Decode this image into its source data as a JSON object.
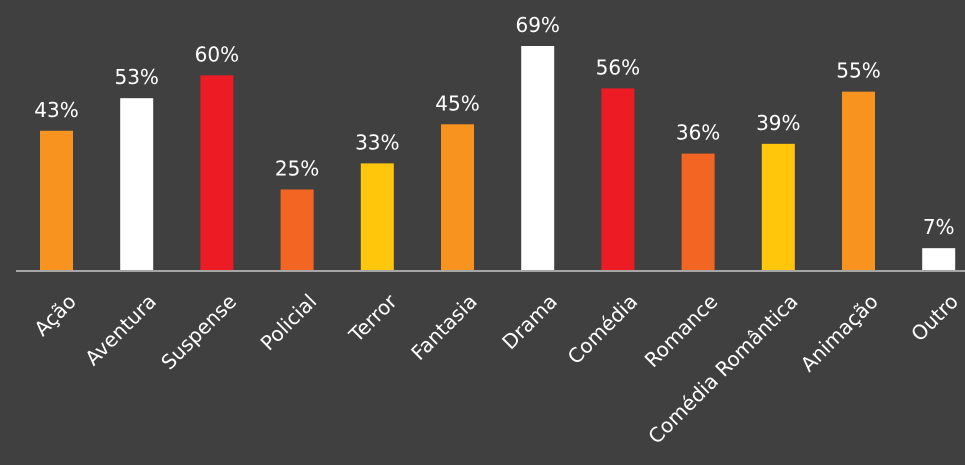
{
  "chart_data": {
    "type": "bar",
    "categories": [
      "Ação",
      "Aventura",
      "Suspense",
      "Policial",
      "Terror",
      "Fantasia",
      "Drama",
      "Comédia",
      "Romance",
      "Comédia Romântica",
      "Animação",
      "Outro"
    ],
    "values": [
      43,
      53,
      60,
      25,
      33,
      45,
      69,
      56,
      36,
      39,
      55,
      7
    ],
    "value_labels": [
      "43%",
      "53%",
      "60%",
      "25%",
      "33%",
      "45%",
      "69%",
      "56%",
      "36%",
      "39%",
      "55%",
      "7%"
    ],
    "bar_colors": [
      "#f7931e",
      "#ffffff",
      "#ed1c24",
      "#f26522",
      "#ffc60b",
      "#f7931e",
      "#ffffff",
      "#ed1c24",
      "#f26522",
      "#ffc60b",
      "#f7931e",
      "#ffffff"
    ],
    "ylim": [
      0,
      70
    ],
    "grid": false,
    "legend": "none",
    "colors": {
      "background": "#404040",
      "axis": "#a6a6a6",
      "text": "#ffffff"
    }
  }
}
